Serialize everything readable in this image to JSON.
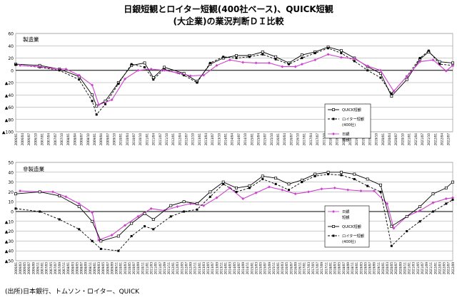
{
  "title_line1": "日銀短観とロイター短観(400社ベース)、QUICK短観",
  "title_line2": "(大企業)の業況判断ＤＩ比較",
  "source": "(出所)日本銀行、トムソン・ロイター、QUICK",
  "colors": {
    "tankan": "#d040d0",
    "quick": "#000000",
    "reuters": "#000000"
  },
  "chart_data": [
    {
      "type": "line",
      "label": "製造業",
      "ylim": [
        -100,
        60
      ],
      "yticks": [
        60,
        40,
        20,
        0,
        -20,
        -40,
        -60,
        -80,
        -100
      ],
      "ytick_labels": [
        "60",
        "40",
        "20",
        "0",
        "▲20",
        "▲40",
        "▲60",
        "▲80",
        "▲100"
      ],
      "x_start": "2006/01",
      "x_end": "2022/09",
      "x_tick_step_months": 3,
      "legend": [
        "QUICK短観",
        "ロイター短観",
        "(400社)",
        "日銀",
        "短観"
      ],
      "legend_position": "center-right",
      "series": [
        {
          "name": "QUICK短観",
          "style": "line-open-square",
          "color": "#000000",
          "points": [
            [
              "2006/01",
              10
            ],
            [
              "2006/12",
              8
            ],
            [
              "2007/09",
              2
            ],
            [
              "2008/06",
              -10
            ],
            [
              "2008/12",
              -40
            ],
            [
              "2009/02",
              -58
            ],
            [
              "2009/06",
              -50
            ],
            [
              "2009/12",
              -20
            ],
            [
              "2010/06",
              8
            ],
            [
              "2010/12",
              12
            ],
            [
              "2011/04",
              -12
            ],
            [
              "2011/09",
              5
            ],
            [
              "2012/06",
              -5
            ],
            [
              "2012/12",
              -18
            ],
            [
              "2013/06",
              10
            ],
            [
              "2013/12",
              20
            ],
            [
              "2014/06",
              24
            ],
            [
              "2014/12",
              24
            ],
            [
              "2015/06",
              30
            ],
            [
              "2015/12",
              22
            ],
            [
              "2016/06",
              12
            ],
            [
              "2016/12",
              25
            ],
            [
              "2017/06",
              30
            ],
            [
              "2017/12",
              38
            ],
            [
              "2018/06",
              32
            ],
            [
              "2018/12",
              20
            ],
            [
              "2019/06",
              6
            ],
            [
              "2019/12",
              -5
            ],
            [
              "2020/05",
              -42
            ],
            [
              "2020/12",
              -15
            ],
            [
              "2021/06",
              18
            ],
            [
              "2021/10",
              30
            ],
            [
              "2022/03",
              14
            ],
            [
              "2022/09",
              12
            ]
          ]
        },
        {
          "name": "ロイター短観",
          "style": "dashed-filled-square",
          "color": "#000000",
          "points": [
            [
              "2006/01",
              9
            ],
            [
              "2006/12",
              5
            ],
            [
              "2007/09",
              0
            ],
            [
              "2008/06",
              -15
            ],
            [
              "2008/12",
              -50
            ],
            [
              "2009/02",
              -72
            ],
            [
              "2009/06",
              -55
            ],
            [
              "2009/12",
              -22
            ],
            [
              "2010/06",
              10
            ],
            [
              "2010/12",
              5
            ],
            [
              "2011/04",
              -15
            ],
            [
              "2011/09",
              2
            ],
            [
              "2012/06",
              -8
            ],
            [
              "2012/12",
              -20
            ],
            [
              "2013/06",
              12
            ],
            [
              "2013/12",
              22
            ],
            [
              "2014/06",
              20
            ],
            [
              "2014/12",
              22
            ],
            [
              "2015/06",
              26
            ],
            [
              "2015/12",
              18
            ],
            [
              "2016/06",
              10
            ],
            [
              "2016/12",
              20
            ],
            [
              "2017/06",
              28
            ],
            [
              "2017/12",
              36
            ],
            [
              "2018/06",
              28
            ],
            [
              "2018/12",
              15
            ],
            [
              "2019/06",
              0
            ],
            [
              "2019/12",
              -12
            ],
            [
              "2020/05",
              -38
            ],
            [
              "2020/12",
              -10
            ],
            [
              "2021/06",
              20
            ],
            [
              "2021/10",
              32
            ],
            [
              "2022/03",
              10
            ],
            [
              "2022/09",
              8
            ]
          ]
        },
        {
          "name": "日銀短観",
          "style": "line-magenta-diamond",
          "color": "#d040d0",
          "points": [
            [
              "2006/03",
              8
            ],
            [
              "2006/12",
              6
            ],
            [
              "2007/06",
              3
            ],
            [
              "2007/12",
              2
            ],
            [
              "2008/06",
              -8
            ],
            [
              "2008/12",
              -24
            ],
            [
              "2009/03",
              -56
            ],
            [
              "2009/09",
              -48
            ],
            [
              "2010/03",
              -14
            ],
            [
              "2010/09",
              0
            ],
            [
              "2011/03",
              2
            ],
            [
              "2011/09",
              0
            ],
            [
              "2012/03",
              -4
            ],
            [
              "2012/09",
              -9
            ],
            [
              "2013/03",
              -8
            ],
            [
              "2013/09",
              8
            ],
            [
              "2014/03",
              17
            ],
            [
              "2014/09",
              13
            ],
            [
              "2015/03",
              12
            ],
            [
              "2015/09",
              12
            ],
            [
              "2016/03",
              6
            ],
            [
              "2016/09",
              6
            ],
            [
              "2016/12",
              10
            ],
            [
              "2017/06",
              17
            ],
            [
              "2017/12",
              26
            ],
            [
              "2018/06",
              21
            ],
            [
              "2018/12",
              19
            ],
            [
              "2019/06",
              7
            ],
            [
              "2019/12",
              0
            ],
            [
              "2020/06",
              -34
            ],
            [
              "2020/12",
              -10
            ],
            [
              "2021/06",
              14
            ],
            [
              "2021/12",
              17
            ],
            [
              "2022/06",
              -1
            ],
            [
              "2022/09",
              8
            ]
          ]
        }
      ]
    },
    {
      "type": "line",
      "label": "非製造業",
      "ylim": [
        -50,
        50
      ],
      "yticks": [
        50,
        40,
        30,
        20,
        10,
        0,
        -10,
        -20,
        -30,
        -40,
        -50
      ],
      "ytick_labels": [
        "50",
        "40",
        "30",
        "20",
        "10",
        "0",
        "▲10",
        "▲20",
        "▲30",
        "▲40",
        "▲50"
      ],
      "x_start": "2006/01",
      "x_end": "2022/09",
      "x_tick_step_months": 2,
      "legend": [
        "日銀",
        "短観",
        "QUICK短観",
        "ロイター短観",
        "(400社)"
      ],
      "legend_position": "center-right",
      "series": [
        {
          "name": "日銀短観",
          "style": "line-magenta-diamond",
          "color": "#d040d0",
          "points": [
            [
              "2006/03",
              21
            ],
            [
              "2006/12",
              20
            ],
            [
              "2007/06",
              20
            ],
            [
              "2007/12",
              15
            ],
            [
              "2008/06",
              8
            ],
            [
              "2008/12",
              -1
            ],
            [
              "2009/03",
              -29
            ],
            [
              "2009/09",
              -24
            ],
            [
              "2010/03",
              -14
            ],
            [
              "2010/09",
              -5
            ],
            [
              "2011/03",
              3
            ],
            [
              "2011/09",
              1
            ],
            [
              "2012/03",
              5
            ],
            [
              "2012/09",
              8
            ],
            [
              "2013/03",
              6
            ],
            [
              "2013/09",
              14
            ],
            [
              "2014/03",
              24
            ],
            [
              "2014/09",
              13
            ],
            [
              "2015/03",
              19
            ],
            [
              "2015/09",
              25
            ],
            [
              "2016/03",
              22
            ],
            [
              "2016/09",
              18
            ],
            [
              "2017/03",
              20
            ],
            [
              "2017/09",
              23
            ],
            [
              "2018/03",
              24
            ],
            [
              "2018/09",
              22
            ],
            [
              "2019/03",
              21
            ],
            [
              "2019/09",
              21
            ],
            [
              "2020/03",
              8
            ],
            [
              "2020/06",
              -17
            ],
            [
              "2020/12",
              -5
            ],
            [
              "2021/06",
              1
            ],
            [
              "2021/12",
              9
            ],
            [
              "2022/06",
              13
            ],
            [
              "2022/09",
              14
            ]
          ]
        },
        {
          "name": "QUICK短観",
          "style": "line-open-square",
          "color": "#000000",
          "points": [
            [
              "2006/01",
              18
            ],
            [
              "2006/12",
              20
            ],
            [
              "2007/09",
              16
            ],
            [
              "2008/06",
              5
            ],
            [
              "2008/12",
              -10
            ],
            [
              "2009/04",
              -30
            ],
            [
              "2009/12",
              -25
            ],
            [
              "2010/06",
              -12
            ],
            [
              "2010/12",
              -2
            ],
            [
              "2011/04",
              -8
            ],
            [
              "2011/12",
              6
            ],
            [
              "2012/06",
              10
            ],
            [
              "2012/12",
              8
            ],
            [
              "2013/06",
              20
            ],
            [
              "2013/12",
              30
            ],
            [
              "2014/06",
              24
            ],
            [
              "2014/12",
              26
            ],
            [
              "2015/06",
              36
            ],
            [
              "2015/12",
              34
            ],
            [
              "2016/06",
              28
            ],
            [
              "2016/12",
              32
            ],
            [
              "2017/06",
              38
            ],
            [
              "2017/12",
              40
            ],
            [
              "2018/06",
              40
            ],
            [
              "2018/12",
              38
            ],
            [
              "2019/06",
              33
            ],
            [
              "2019/12",
              27
            ],
            [
              "2020/05",
              -15
            ],
            [
              "2020/12",
              -5
            ],
            [
              "2021/06",
              5
            ],
            [
              "2021/12",
              18
            ],
            [
              "2022/06",
              24
            ],
            [
              "2022/09",
              30
            ]
          ]
        },
        {
          "name": "ロイター短観",
          "style": "dashed-filled-square",
          "color": "#000000",
          "points": [
            [
              "2006/01",
              3
            ],
            [
              "2006/12",
              0
            ],
            [
              "2007/09",
              -8
            ],
            [
              "2008/06",
              -18
            ],
            [
              "2008/12",
              -30
            ],
            [
              "2009/04",
              -38
            ],
            [
              "2009/12",
              -40
            ],
            [
              "2010/06",
              -25
            ],
            [
              "2010/12",
              -15
            ],
            [
              "2011/04",
              -18
            ],
            [
              "2011/12",
              -5
            ],
            [
              "2012/06",
              0
            ],
            [
              "2012/12",
              2
            ],
            [
              "2013/06",
              15
            ],
            [
              "2013/12",
              28
            ],
            [
              "2014/06",
              20
            ],
            [
              "2014/12",
              24
            ],
            [
              "2015/06",
              33
            ],
            [
              "2015/12",
              28
            ],
            [
              "2016/06",
              22
            ],
            [
              "2016/12",
              30
            ],
            [
              "2017/06",
              36
            ],
            [
              "2017/12",
              38
            ],
            [
              "2018/06",
              37
            ],
            [
              "2018/12",
              33
            ],
            [
              "2019/06",
              26
            ],
            [
              "2019/12",
              20
            ],
            [
              "2020/05",
              -35
            ],
            [
              "2020/12",
              -20
            ],
            [
              "2021/06",
              -10
            ],
            [
              "2021/12",
              0
            ],
            [
              "2022/06",
              8
            ],
            [
              "2022/09",
              12
            ]
          ]
        }
      ]
    }
  ]
}
